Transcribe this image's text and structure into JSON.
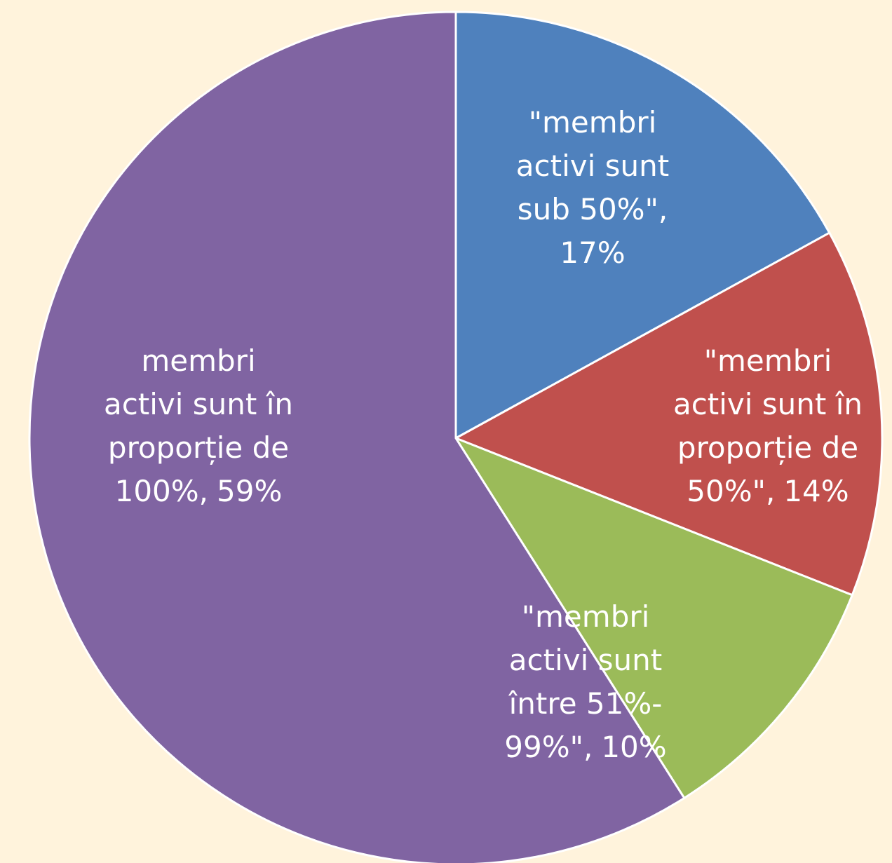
{
  "chart_data": {
    "type": "pie",
    "categories": [
      [
        "\"membri",
        "activi sunt",
        "sub 50%\","
      ],
      [
        "\"membri",
        "activi sunt în",
        "proporție de",
        "50%\","
      ],
      [
        "\"membri",
        "activi sunt",
        "între 51%-",
        "99%\","
      ],
      [
        "membri",
        "activi sunt în",
        "proporție de",
        "100%,"
      ]
    ],
    "values": [
      17,
      14,
      10,
      59
    ],
    "value_labels": [
      "17%",
      "14%",
      "10%",
      "59%"
    ],
    "colors": [
      "#4f81bd",
      "#c0504d",
      "#9bbb59",
      "#8064a2"
    ]
  }
}
